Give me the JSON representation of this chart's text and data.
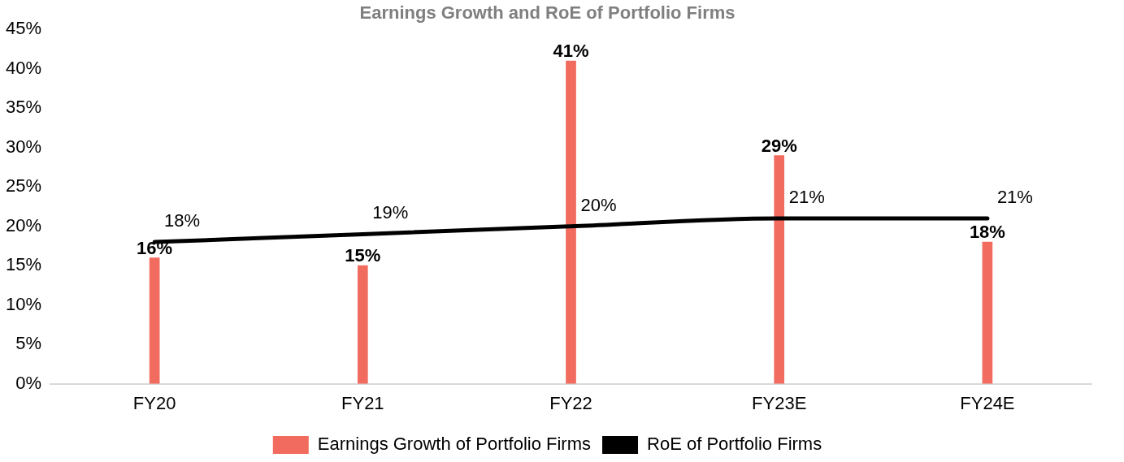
{
  "chart_data": {
    "type": "bar",
    "title": "Earnings Growth and RoE of Portfolio Firms",
    "categories": [
      "FY20",
      "FY21",
      "FY22",
      "FY23E",
      "FY24E"
    ],
    "series": [
      {
        "name": "Earnings Growth of Portfolio Firms",
        "color": "#f26b5f",
        "values": [
          16,
          15,
          41,
          29,
          18
        ],
        "value_labels": [
          "16%",
          "15%",
          "41%",
          "29%",
          "18%"
        ]
      },
      {
        "name": "RoE of Portfolio Firms",
        "type": "line",
        "color": "#000000",
        "values": [
          18,
          19,
          20,
          21,
          21
        ],
        "value_labels": [
          "18%",
          "19%",
          "20%",
          "21%",
          "21%"
        ]
      }
    ],
    "ylim": [
      0,
      45
    ],
    "yticks": [
      {
        "value": 0,
        "label": "0%"
      },
      {
        "value": 5,
        "label": "5%"
      },
      {
        "value": 10,
        "label": "10%"
      },
      {
        "value": 15,
        "label": "15%"
      },
      {
        "value": 20,
        "label": "20%"
      },
      {
        "value": 25,
        "label": "25%"
      },
      {
        "value": 30,
        "label": "30%"
      },
      {
        "value": 35,
        "label": "35%"
      },
      {
        "value": 40,
        "label": "40%"
      },
      {
        "value": 45,
        "label": "45%"
      }
    ],
    "grid": false,
    "legend": "bottom",
    "marker": "none",
    "line_style": "solid"
  }
}
